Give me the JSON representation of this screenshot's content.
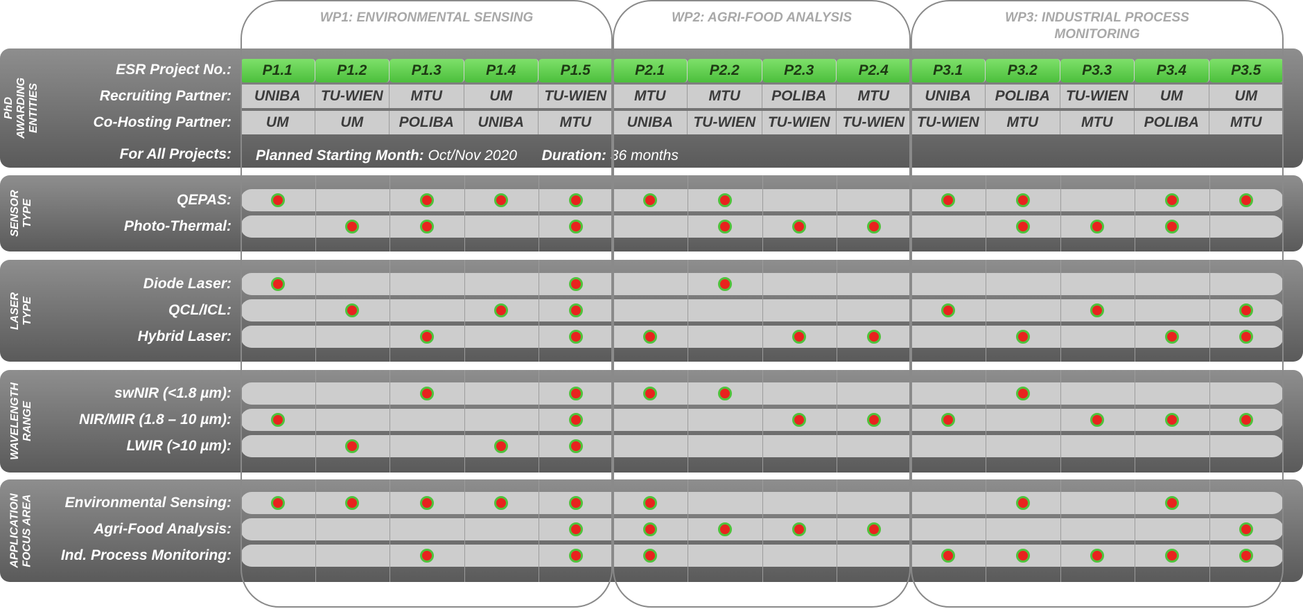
{
  "work_packages": [
    {
      "title": "WP1: ENVIRONMENTAL SENSING"
    },
    {
      "title": "WP2: AGRI-FOOD ANALYSIS"
    },
    {
      "title": "WP3: INDUSTRIAL PROCESS MONITORING"
    }
  ],
  "projects": [
    "P1.1",
    "P1.2",
    "P1.3",
    "P1.4",
    "P1.5",
    "P2.1",
    "P2.2",
    "P2.3",
    "P2.4",
    "P3.1",
    "P3.2",
    "P3.3",
    "P3.4",
    "P3.5"
  ],
  "phd": {
    "section_label": "PhD AWARDING ENTITIES",
    "project_label": "ESR Project No.:",
    "recruiting_label": "Recruiting Partner:",
    "cohosting_label": "Co-Hosting Partner:",
    "all_projects_label": "For All Projects:",
    "recruiting": [
      "UNIBA",
      "TU-WIEN",
      "MTU",
      "UM",
      "TU-WIEN",
      "MTU",
      "MTU",
      "POLIBA",
      "MTU",
      "UNIBA",
      "POLIBA",
      "TU-WIEN",
      "UM",
      "UM"
    ],
    "cohosting": [
      "UM",
      "UM",
      "POLIBA",
      "UNIBA",
      "MTU",
      "UNIBA",
      "TU-WIEN",
      "TU-WIEN",
      "TU-WIEN",
      "TU-WIEN",
      "MTU",
      "MTU",
      "POLIBA",
      "MTU"
    ],
    "start_label": "Planned Starting Month:",
    "start_value": "Oct/Nov 2020",
    "duration_label": "Duration:",
    "duration_value": "36 months"
  },
  "sections": [
    {
      "label": "SENSOR TYPE",
      "rows": [
        {
          "label": "QEPAS:",
          "marks": [
            1,
            0,
            1,
            1,
            1,
            1,
            1,
            0,
            0,
            1,
            1,
            0,
            1,
            1
          ]
        },
        {
          "label": "Photo-Thermal:",
          "marks": [
            0,
            1,
            1,
            0,
            1,
            0,
            1,
            1,
            1,
            0,
            1,
            1,
            1,
            0
          ]
        }
      ]
    },
    {
      "label": "LASER TYPE",
      "rows": [
        {
          "label": "Diode Laser:",
          "marks": [
            1,
            0,
            0,
            0,
            1,
            0,
            1,
            0,
            0,
            0,
            0,
            0,
            0,
            0
          ]
        },
        {
          "label": "QCL/ICL:",
          "marks": [
            0,
            1,
            0,
            1,
            1,
            0,
            0,
            0,
            0,
            1,
            0,
            1,
            0,
            1
          ]
        },
        {
          "label": "Hybrid Laser:",
          "marks": [
            0,
            0,
            1,
            0,
            1,
            1,
            0,
            1,
            1,
            0,
            1,
            0,
            1,
            1
          ]
        }
      ]
    },
    {
      "label": "WAVELENGTH RANGE",
      "rows": [
        {
          "label": "swNIR (<1.8 µm):",
          "marks": [
            0,
            0,
            1,
            0,
            1,
            1,
            1,
            0,
            0,
            0,
            1,
            0,
            0,
            0
          ]
        },
        {
          "label": "NIR/MIR (1.8 – 10 µm):",
          "marks": [
            1,
            0,
            0,
            0,
            1,
            0,
            0,
            1,
            1,
            1,
            0,
            1,
            1,
            1
          ]
        },
        {
          "label": "LWIR (>10 µm):",
          "marks": [
            0,
            1,
            0,
            1,
            1,
            0,
            0,
            0,
            0,
            0,
            0,
            0,
            0,
            0
          ]
        }
      ]
    },
    {
      "label": "APPLICATION FOCUS AREA",
      "rows": [
        {
          "label": "Environmental Sensing:",
          "marks": [
            1,
            1,
            1,
            1,
            1,
            1,
            0,
            0,
            0,
            0,
            1,
            0,
            1,
            0
          ]
        },
        {
          "label": "Agri-Food Analysis:",
          "marks": [
            0,
            0,
            0,
            0,
            1,
            1,
            1,
            1,
            1,
            0,
            0,
            0,
            0,
            1
          ]
        },
        {
          "label": "Ind. Process Monitoring:",
          "marks": [
            0,
            0,
            1,
            0,
            1,
            1,
            0,
            0,
            0,
            1,
            1,
            1,
            1,
            1
          ]
        }
      ]
    }
  ],
  "colors": {
    "dot_fill": "#e8231e",
    "dot_ring": "#4fc23c",
    "project_cell": "#5ccb48"
  }
}
